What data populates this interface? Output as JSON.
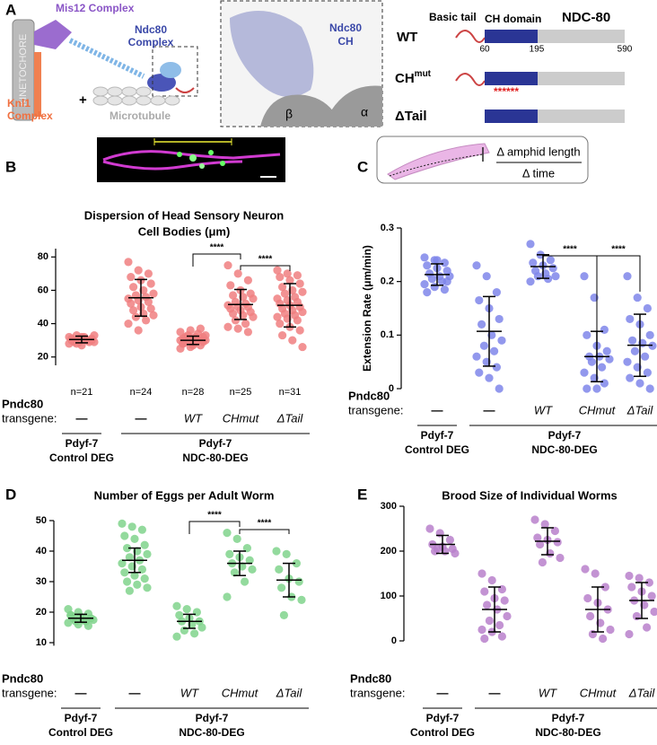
{
  "panel_a": {
    "label": "A",
    "kinetochore": "KINETOCHORE",
    "mis12": "Mis12 Complex",
    "ndc80_complex": [
      "Ndc80",
      "Complex"
    ],
    "knl1": [
      "Knl1",
      "Complex"
    ],
    "plus": "+",
    "microtubule": "Microtubule",
    "ndc80_ch": [
      "Ndc80",
      "CH"
    ],
    "beta": "β",
    "alpha": "α",
    "wt": "WT",
    "basic_tail": "Basic tail",
    "ch_domain": "CH domain",
    "ndc80": "NDC-80",
    "positions": [
      "60",
      "195",
      "590"
    ],
    "ch_mut": {
      "base": "CH",
      "sup": "mut"
    },
    "mutations": "******",
    "delta_tail": "ΔTail"
  },
  "chart_data": [
    {
      "type": "dotplot",
      "label": "B",
      "title": [
        "Dispersion of Head Sensory Neuron",
        "Cell Bodies (μm)"
      ],
      "color": "#f07f80",
      "categories": [
        "—",
        "—",
        "WT",
        "CHmut",
        "ΔTail"
      ],
      "values": [
        [
          28,
          29,
          30,
          31,
          32,
          30,
          29,
          31,
          33,
          28,
          30,
          32,
          31,
          29,
          30,
          27,
          31,
          30,
          32,
          29,
          33
        ],
        [
          77,
          72,
          70,
          68,
          66,
          64,
          62,
          60,
          58,
          57,
          56,
          55,
          54,
          53,
          52,
          50,
          49,
          48,
          46,
          45,
          44,
          42,
          40,
          36
        ],
        [
          25,
          26,
          27,
          28,
          28,
          29,
          29,
          29,
          30,
          30,
          30,
          30,
          31,
          31,
          31,
          31,
          32,
          32,
          32,
          33,
          33,
          34,
          35,
          36,
          37,
          28,
          27,
          30
        ],
        [
          75,
          70,
          66,
          63,
          60,
          58,
          57,
          56,
          55,
          53,
          52,
          51,
          50,
          50,
          49,
          48,
          47,
          46,
          45,
          44,
          42,
          40,
          38,
          37,
          35
        ],
        [
          72,
          70,
          69,
          68,
          66,
          64,
          62,
          60,
          59,
          58,
          56,
          55,
          54,
          53,
          52,
          51,
          50,
          49,
          48,
          47,
          46,
          45,
          44,
          43,
          42,
          40,
          38,
          36,
          33,
          30,
          26
        ]
      ],
      "means": [
        30.5,
        55.5,
        30,
        51.5,
        51
      ],
      "sd": [
        2,
        11,
        2.5,
        9,
        13
      ],
      "n_labels": [
        "n=21",
        "n=24",
        "n=28",
        "n=25",
        "n=31"
      ],
      "significance": [
        "****",
        "****"
      ],
      "ylim": [
        15,
        85
      ],
      "yticks": [
        20,
        40,
        60,
        80
      ],
      "row_labels": [
        "Pndc80",
        "transgene:"
      ],
      "group_labels": [
        [
          "Pdyf-7",
          "Control DEG"
        ],
        [
          "Pdyf-7",
          "NDC-80-DEG"
        ]
      ]
    },
    {
      "type": "dotplot",
      "label": "C",
      "ylabel": "Extension Rate (μm/min)",
      "inset": [
        "Δ amphid length",
        "Δ time"
      ],
      "color": "#7f86ea",
      "categories": [
        "—",
        "—",
        "WT",
        "CHmut",
        "ΔTail"
      ],
      "values": [
        [
          0.245,
          0.24,
          0.235,
          0.23,
          0.225,
          0.22,
          0.215,
          0.21,
          0.21,
          0.205,
          0.2,
          0.195,
          0.19,
          0.185,
          0.18,
          0.24,
          0.2
        ],
        [
          0.23,
          0.21,
          0.18,
          0.165,
          0.15,
          0.13,
          0.12,
          0.1,
          0.09,
          0.08,
          0.07,
          0.06,
          0.05,
          0.04,
          0.03,
          0.02,
          0.0
        ],
        [
          0.27,
          0.25,
          0.24,
          0.235,
          0.23,
          0.225,
          0.22,
          0.215,
          0.21,
          0.21,
          0.205,
          0.2
        ],
        [
          0.21,
          0.17,
          0.11,
          0.1,
          0.08,
          0.07,
          0.06,
          0.06,
          0.055,
          0.05,
          0.04,
          0.03,
          0.02,
          0.01,
          0.0,
          0.0
        ],
        [
          0.21,
          0.17,
          0.15,
          0.13,
          0.12,
          0.1,
          0.09,
          0.085,
          0.08,
          0.07,
          0.06,
          0.05,
          0.04,
          0.03,
          0.02,
          0.01,
          0.0
        ]
      ],
      "means": [
        0.213,
        0.107,
        0.228,
        0.06,
        0.081
      ],
      "sd": [
        0.02,
        0.065,
        0.022,
        0.047,
        0.058
      ],
      "significance": [
        "****",
        "****"
      ],
      "ylim": [
        0,
        0.3
      ],
      "yticks": [
        0,
        0.1,
        0.2,
        0.3
      ],
      "row_labels": [
        "Pndc80",
        "transgene:"
      ],
      "group_labels": [
        [
          "Pdyf-7",
          "Control DEG"
        ],
        [
          "Pdyf-7",
          "NDC-80-DEG"
        ]
      ]
    },
    {
      "type": "dotplot",
      "label": "D",
      "title": [
        "Number of Eggs per Adult Worm"
      ],
      "color": "#80d38c",
      "categories": [
        "—",
        "—",
        "WT",
        "CHmut",
        "ΔTail"
      ],
      "values": [
        [
          21,
          20,
          19.5,
          19,
          18.5,
          18,
          18,
          17.5,
          17.5,
          17,
          17,
          16.5,
          16,
          15.5,
          19
        ],
        [
          49,
          48,
          47,
          45,
          44,
          42,
          41,
          40,
          39,
          38,
          37,
          36,
          35,
          34,
          33,
          32,
          31,
          30,
          29,
          28,
          27
        ],
        [
          22,
          21,
          20,
          19,
          18,
          17,
          17,
          16,
          15,
          14,
          13,
          12
        ],
        [
          46,
          44,
          41,
          39,
          38,
          37,
          36,
          35,
          34,
          33,
          30,
          25
        ],
        [
          40,
          39,
          36,
          34,
          31,
          30,
          28,
          25,
          24,
          19
        ]
      ],
      "means": [
        18,
        37,
        17,
        36,
        30.5
      ],
      "sd": [
        1.3,
        4,
        2.3,
        4,
        5.5
      ],
      "significance": [
        "****",
        "****"
      ],
      "ylim": [
        9,
        50
      ],
      "yticks": [
        10,
        20,
        30,
        40,
        50
      ],
      "row_labels": [
        "Pndc80",
        "transgene:"
      ],
      "group_labels": [
        [
          "Pdyf-7",
          "Control DEG"
        ],
        [
          "Pdyf-7",
          "NDC-80-DEG"
        ]
      ]
    },
    {
      "type": "dotplot",
      "label": "E",
      "title": [
        "Brood Size of Individual Worms"
      ],
      "color": "#b880cb",
      "categories": [
        "—",
        "—",
        "WT",
        "CHmut",
        "ΔTail"
      ],
      "values": [
        [
          250,
          240,
          225,
          215,
          210,
          205,
          200,
          200,
          195,
          205
        ],
        [
          150,
          135,
          115,
          110,
          95,
          90,
          80,
          70,
          55,
          45,
          35,
          25,
          20,
          10,
          5
        ],
        [
          270,
          260,
          245,
          230,
          225,
          220,
          215,
          195,
          185,
          175
        ],
        [
          160,
          150,
          120,
          95,
          85,
          70,
          55,
          40,
          25,
          15,
          5
        ],
        [
          145,
          140,
          130,
          120,
          110,
          100,
          90,
          80,
          65,
          55,
          30,
          15
        ]
      ],
      "means": [
        215,
        70,
        222,
        70,
        90
      ],
      "sd": [
        20,
        50,
        30,
        50,
        40
      ],
      "ylim": [
        0,
        300
      ],
      "yticks": [
        0,
        100,
        200,
        300
      ],
      "row_labels": [
        "Pndc80",
        "transgene:"
      ],
      "group_labels": [
        [
          "Pdyf-7",
          "Control DEG"
        ],
        [
          "Pdyf-7",
          "NDC-80-DEG"
        ]
      ]
    }
  ]
}
